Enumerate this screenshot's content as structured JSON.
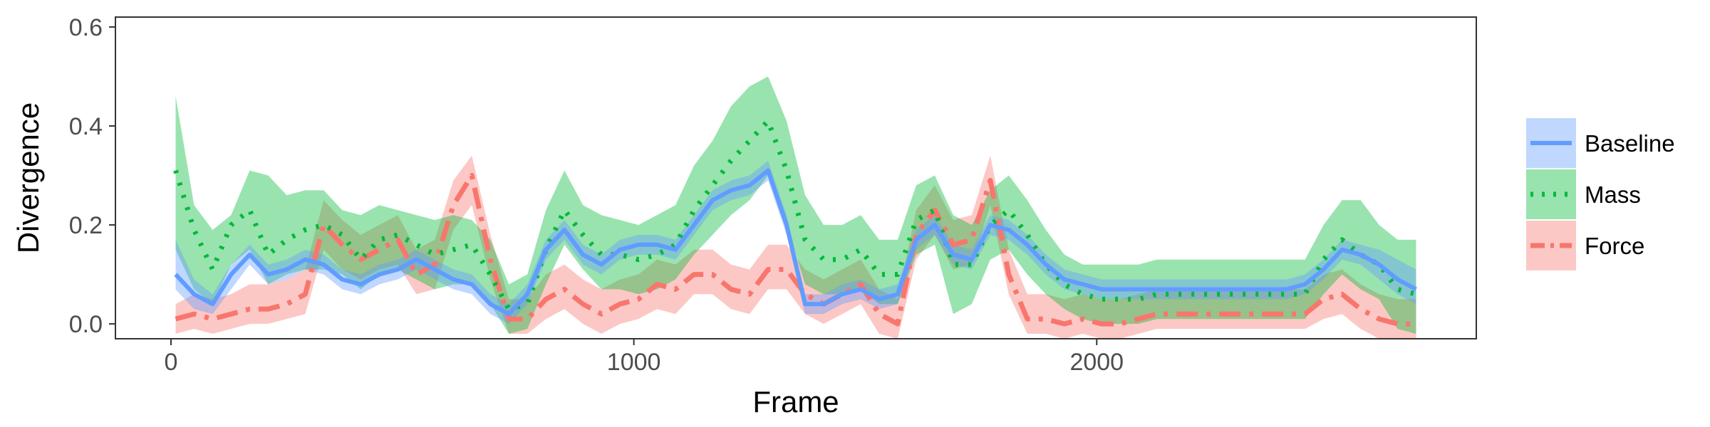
{
  "chart_data": {
    "type": "line",
    "xlabel": "Frame",
    "ylabel": "Divergence",
    "xlim": [
      -120,
      2820
    ],
    "ylim": [
      -0.03,
      0.62
    ],
    "x_ticks": [
      0,
      1000,
      2000
    ],
    "y_ticks": [
      0.0,
      0.2,
      0.4,
      0.6
    ],
    "x_tick_labels": [
      "0",
      "1000",
      "2000"
    ],
    "y_tick_labels": [
      "0.0",
      "0.2",
      "0.4",
      "0.6"
    ],
    "grid": false,
    "legend_position": "right",
    "x": [
      10,
      50,
      90,
      130,
      170,
      210,
      250,
      290,
      330,
      370,
      410,
      450,
      490,
      530,
      570,
      610,
      650,
      690,
      730,
      770,
      810,
      850,
      890,
      930,
      970,
      1010,
      1050,
      1090,
      1130,
      1170,
      1210,
      1250,
      1290,
      1330,
      1370,
      1410,
      1450,
      1490,
      1530,
      1570,
      1610,
      1650,
      1690,
      1730,
      1770,
      1810,
      1850,
      1890,
      1930,
      1970,
      2010,
      2050,
      2090,
      2130,
      2170,
      2210,
      2250,
      2290,
      2330,
      2370,
      2410,
      2450,
      2490,
      2530,
      2570,
      2610,
      2650,
      2690
    ],
    "series": [
      {
        "name": "Baseline",
        "color": "#619CFF",
        "dash": "solid",
        "values": [
          0.1,
          0.06,
          0.04,
          0.1,
          0.14,
          0.1,
          0.11,
          0.13,
          0.12,
          0.09,
          0.08,
          0.1,
          0.11,
          0.13,
          0.11,
          0.09,
          0.08,
          0.04,
          0.02,
          0.06,
          0.15,
          0.19,
          0.14,
          0.12,
          0.15,
          0.16,
          0.16,
          0.15,
          0.2,
          0.25,
          0.27,
          0.28,
          0.31,
          0.2,
          0.04,
          0.04,
          0.06,
          0.07,
          0.05,
          0.06,
          0.17,
          0.2,
          0.14,
          0.13,
          0.2,
          0.19,
          0.16,
          0.12,
          0.09,
          0.08,
          0.07,
          0.07,
          0.07,
          0.07,
          0.07,
          0.07,
          0.07,
          0.07,
          0.07,
          0.07,
          0.07,
          0.08,
          0.11,
          0.15,
          0.14,
          0.12,
          0.09,
          0.07
        ],
        "lower": [
          0.07,
          0.03,
          0.02,
          0.07,
          0.12,
          0.08,
          0.09,
          0.11,
          0.1,
          0.07,
          0.06,
          0.08,
          0.09,
          0.11,
          0.09,
          0.07,
          0.06,
          0.02,
          0.0,
          0.04,
          0.13,
          0.17,
          0.12,
          0.1,
          0.13,
          0.14,
          0.14,
          0.13,
          0.18,
          0.23,
          0.25,
          0.26,
          0.29,
          0.18,
          0.02,
          0.02,
          0.04,
          0.05,
          0.03,
          0.04,
          0.15,
          0.18,
          0.12,
          0.11,
          0.18,
          0.17,
          0.14,
          0.1,
          0.07,
          0.06,
          0.05,
          0.05,
          0.05,
          0.05,
          0.05,
          0.05,
          0.05,
          0.05,
          0.05,
          0.05,
          0.05,
          0.06,
          0.09,
          0.13,
          0.12,
          0.09,
          0.06,
          0.04
        ],
        "upper": [
          0.17,
          0.09,
          0.06,
          0.12,
          0.16,
          0.12,
          0.13,
          0.15,
          0.14,
          0.11,
          0.1,
          0.12,
          0.13,
          0.15,
          0.13,
          0.11,
          0.1,
          0.06,
          0.04,
          0.08,
          0.17,
          0.21,
          0.16,
          0.14,
          0.17,
          0.18,
          0.18,
          0.17,
          0.22,
          0.27,
          0.29,
          0.3,
          0.33,
          0.22,
          0.06,
          0.06,
          0.08,
          0.09,
          0.07,
          0.08,
          0.19,
          0.22,
          0.16,
          0.15,
          0.22,
          0.21,
          0.18,
          0.14,
          0.11,
          0.1,
          0.09,
          0.09,
          0.09,
          0.09,
          0.09,
          0.09,
          0.09,
          0.09,
          0.09,
          0.09,
          0.09,
          0.1,
          0.13,
          0.17,
          0.16,
          0.15,
          0.13,
          0.11
        ]
      },
      {
        "name": "Mass",
        "color": "#00BA38",
        "dash": "dotted",
        "values": [
          0.31,
          0.19,
          0.11,
          0.2,
          0.23,
          0.14,
          0.17,
          0.19,
          0.2,
          0.18,
          0.13,
          0.17,
          0.18,
          0.16,
          0.14,
          0.15,
          0.16,
          0.1,
          0.03,
          0.04,
          0.15,
          0.23,
          0.18,
          0.14,
          0.14,
          0.13,
          0.14,
          0.16,
          0.23,
          0.28,
          0.33,
          0.37,
          0.41,
          0.31,
          0.17,
          0.13,
          0.13,
          0.15,
          0.1,
          0.1,
          0.21,
          0.23,
          0.12,
          0.12,
          0.2,
          0.23,
          0.18,
          0.12,
          0.08,
          0.06,
          0.05,
          0.05,
          0.05,
          0.06,
          0.06,
          0.06,
          0.06,
          0.06,
          0.06,
          0.06,
          0.06,
          0.06,
          0.13,
          0.17,
          0.14,
          0.12,
          0.07,
          0.06
        ],
        "lower": [
          0.15,
          0.07,
          0.04,
          0.12,
          0.15,
          0.08,
          0.1,
          0.11,
          0.11,
          0.1,
          0.07,
          0.1,
          0.11,
          0.09,
          0.07,
          0.08,
          0.08,
          0.04,
          -0.02,
          -0.01,
          0.08,
          0.16,
          0.11,
          0.07,
          0.07,
          0.06,
          0.07,
          0.09,
          0.14,
          0.18,
          0.22,
          0.25,
          0.3,
          0.2,
          0.08,
          0.06,
          0.06,
          0.07,
          0.04,
          0.04,
          0.14,
          0.16,
          0.02,
          0.04,
          0.13,
          0.15,
          0.1,
          0.06,
          0.03,
          0.01,
          0.0,
          0.0,
          0.0,
          0.01,
          0.01,
          0.01,
          0.01,
          0.01,
          0.01,
          0.01,
          0.01,
          0.01,
          0.06,
          0.1,
          0.07,
          0.05,
          -0.01,
          -0.02
        ],
        "upper": [
          0.46,
          0.24,
          0.19,
          0.22,
          0.31,
          0.3,
          0.26,
          0.27,
          0.27,
          0.23,
          0.22,
          0.24,
          0.23,
          0.22,
          0.21,
          0.22,
          0.21,
          0.17,
          0.08,
          0.1,
          0.23,
          0.31,
          0.24,
          0.22,
          0.21,
          0.2,
          0.22,
          0.24,
          0.32,
          0.37,
          0.44,
          0.48,
          0.5,
          0.41,
          0.26,
          0.2,
          0.2,
          0.22,
          0.17,
          0.17,
          0.28,
          0.3,
          0.22,
          0.2,
          0.27,
          0.3,
          0.25,
          0.19,
          0.14,
          0.12,
          0.12,
          0.12,
          0.12,
          0.13,
          0.13,
          0.13,
          0.13,
          0.13,
          0.13,
          0.13,
          0.13,
          0.13,
          0.2,
          0.25,
          0.25,
          0.2,
          0.17,
          0.17
        ]
      },
      {
        "name": "Force",
        "color": "#F8766D",
        "dash": "dashdot",
        "values": [
          0.01,
          0.02,
          0.01,
          0.02,
          0.03,
          0.03,
          0.04,
          0.06,
          0.2,
          0.16,
          0.13,
          0.15,
          0.17,
          0.1,
          0.12,
          0.24,
          0.3,
          0.13,
          0.01,
          0.01,
          0.05,
          0.07,
          0.04,
          0.02,
          0.04,
          0.05,
          0.08,
          0.07,
          0.1,
          0.1,
          0.07,
          0.06,
          0.11,
          0.11,
          0.06,
          0.04,
          0.06,
          0.08,
          0.02,
          0.0,
          0.18,
          0.23,
          0.16,
          0.17,
          0.29,
          0.1,
          0.01,
          0.01,
          0.0,
          0.01,
          0.0,
          0.0,
          0.01,
          0.02,
          0.02,
          0.02,
          0.02,
          0.02,
          0.02,
          0.02,
          0.02,
          0.02,
          0.05,
          0.06,
          0.03,
          0.01,
          0.0,
          0.0
        ],
        "lower": [
          -0.02,
          -0.01,
          -0.02,
          -0.01,
          0.0,
          0.0,
          0.01,
          0.02,
          0.15,
          0.11,
          0.09,
          0.11,
          0.12,
          0.06,
          0.07,
          0.19,
          0.24,
          0.09,
          -0.02,
          -0.02,
          0.01,
          0.03,
          0.0,
          -0.02,
          0.0,
          0.01,
          0.03,
          0.02,
          0.06,
          0.06,
          0.03,
          0.02,
          0.07,
          0.07,
          0.02,
          0.0,
          0.02,
          0.04,
          -0.02,
          -0.03,
          0.13,
          0.18,
          0.11,
          0.12,
          0.24,
          0.06,
          -0.02,
          -0.02,
          -0.03,
          -0.02,
          -0.03,
          -0.03,
          -0.02,
          -0.01,
          -0.01,
          -0.01,
          -0.01,
          -0.01,
          -0.01,
          -0.01,
          -0.01,
          -0.01,
          0.01,
          0.02,
          -0.01,
          -0.03,
          -0.03,
          -0.03
        ],
        "upper": [
          0.04,
          0.06,
          0.05,
          0.06,
          0.08,
          0.08,
          0.09,
          0.11,
          0.25,
          0.21,
          0.18,
          0.2,
          0.22,
          0.15,
          0.17,
          0.29,
          0.34,
          0.18,
          0.05,
          0.05,
          0.1,
          0.12,
          0.09,
          0.07,
          0.09,
          0.1,
          0.13,
          0.12,
          0.15,
          0.15,
          0.12,
          0.11,
          0.16,
          0.16,
          0.11,
          0.09,
          0.11,
          0.13,
          0.07,
          0.05,
          0.23,
          0.28,
          0.21,
          0.22,
          0.34,
          0.15,
          0.06,
          0.06,
          0.05,
          0.06,
          0.05,
          0.05,
          0.06,
          0.07,
          0.07,
          0.07,
          0.07,
          0.07,
          0.07,
          0.07,
          0.07,
          0.07,
          0.1,
          0.11,
          0.08,
          0.06,
          0.05,
          0.05
        ]
      }
    ]
  }
}
